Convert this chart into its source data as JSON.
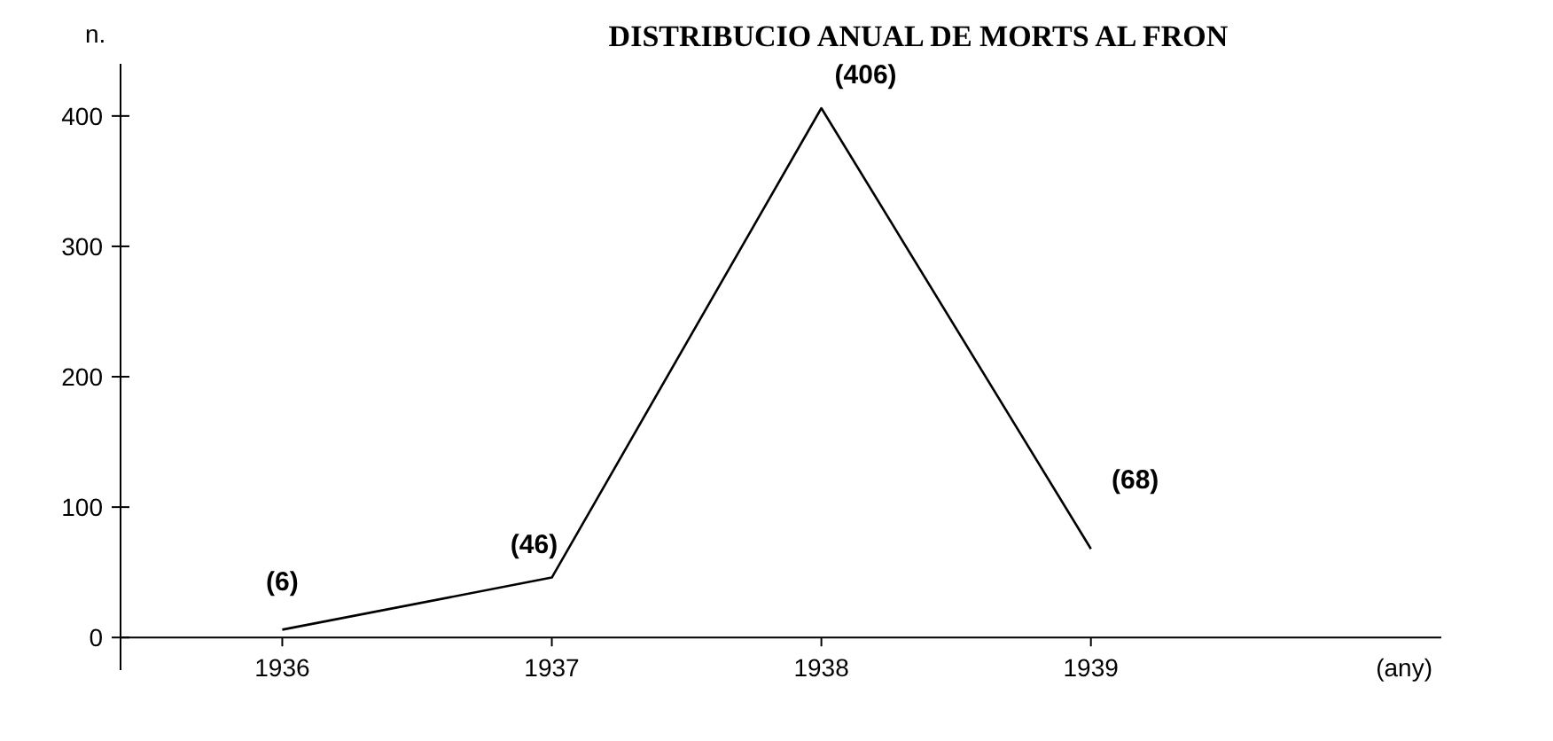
{
  "chart_data": {
    "type": "line",
    "title": "DISTRIBUCIO ANUAL DE MORTS AL FRON",
    "xlabel": "(any)",
    "ylabel": "n.",
    "x": [
      1936,
      1937,
      1938,
      1939
    ],
    "series": [
      {
        "color": "#000000",
        "values": [
          6,
          46,
          406,
          68
        ],
        "value_labels": [
          "(6)",
          "(46)",
          "(406)",
          "(68)"
        ]
      }
    ],
    "xlim": [
      1935.4,
      1940.3
    ],
    "xticks": [
      1936,
      1937,
      1938,
      1939
    ],
    "ylim": [
      -25,
      440
    ],
    "yticks": [
      0,
      100,
      200,
      300,
      400
    ],
    "grid": false,
    "marker": "none",
    "line_style": "solid"
  }
}
